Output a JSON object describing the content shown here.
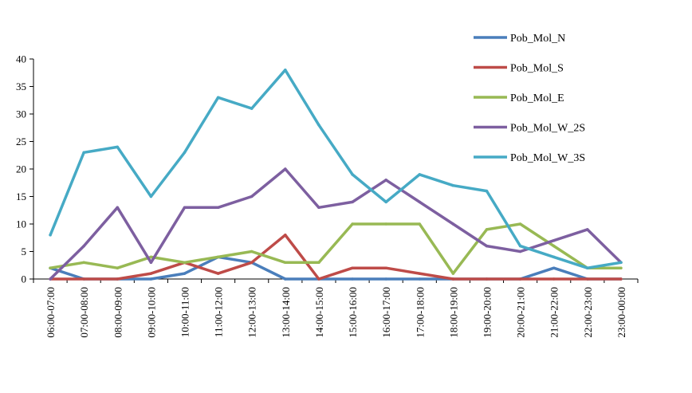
{
  "chart_data": {
    "type": "line",
    "title": "",
    "xlabel": "",
    "ylabel": "",
    "ylim": [
      0,
      40
    ],
    "yticks": [
      0,
      5,
      10,
      15,
      20,
      25,
      30,
      35,
      40
    ],
    "grid": false,
    "legend_position": "top-right",
    "categories": [
      "06:00-07:00",
      "07:00-08:00",
      "08:00-09:00",
      "09:00-10:00",
      "10:00-11:00",
      "11:00-12:00",
      "12:00-13:00",
      "13:00-14:00",
      "14:00-15:00",
      "15:00-16:00",
      "16:00-17:00",
      "17:00-18:00",
      "18:00-19:00",
      "19:00-20:00",
      "20:00-21:00",
      "21:00-22:00",
      "22:00-23:00",
      "23:00-00:00"
    ],
    "series": [
      {
        "name": "Pob_Mol_N",
        "color": "#4a7ebb",
        "values": [
          2,
          0,
          0,
          0,
          1,
          4,
          3,
          0,
          0,
          0,
          0,
          0,
          0,
          0,
          0,
          2,
          0,
          0
        ]
      },
      {
        "name": "Pob_Mol_S",
        "color": "#be4b48",
        "values": [
          0,
          0,
          0,
          1,
          3,
          1,
          3,
          8,
          0,
          2,
          2,
          1,
          0,
          0,
          0,
          0,
          0,
          0
        ]
      },
      {
        "name": "Pob_Mol_E",
        "color": "#98b954",
        "values": [
          2,
          3,
          2,
          4,
          3,
          4,
          5,
          3,
          3,
          10,
          10,
          10,
          1,
          9,
          10,
          6,
          2,
          2
        ]
      },
      {
        "name": "Pob_Mol_W_2S",
        "color": "#7d5fa0",
        "values": [
          0,
          6,
          13,
          3,
          13,
          13,
          15,
          20,
          13,
          14,
          18,
          14,
          10,
          6,
          5,
          7,
          9,
          3
        ]
      },
      {
        "name": "Pob_Mol_W_3S",
        "color": "#46aac5",
        "values": [
          8,
          23,
          24,
          15,
          23,
          33,
          31,
          38,
          28,
          19,
          14,
          19,
          17,
          16,
          6,
          4,
          2,
          3
        ]
      }
    ]
  }
}
